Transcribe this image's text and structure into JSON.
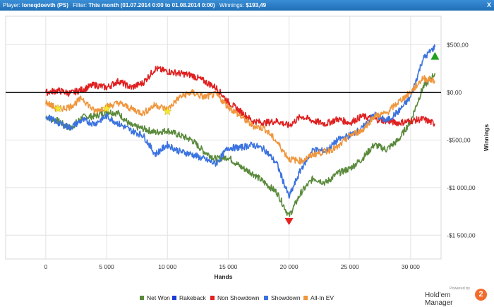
{
  "header": {
    "player_label": "Player:",
    "player_value": "Ioneqdoevth (PS)",
    "filter_label": "Filter:",
    "filter_value": "This month (01.07.2014 0:00 to 01.08.2014 0:00)",
    "winnings_label": "Winnings:",
    "winnings_value": "$193,49",
    "close": "X"
  },
  "chart_data": {
    "type": "line",
    "xlabel": "Hands",
    "ylabel": "Winnings",
    "xlim": [
      -3300,
      32500
    ],
    "ylim": [
      -1750,
      800
    ],
    "x_ticks": [
      0,
      5000,
      10000,
      15000,
      20000,
      25000,
      30000
    ],
    "x_tick_labels": [
      "0",
      "5 000",
      "10 000",
      "15 000",
      "20 000",
      "25 000",
      "30 000"
    ],
    "y_ticks": [
      -1500,
      -1000,
      -500,
      0,
      500
    ],
    "y_tick_labels": [
      "-$1 500,00",
      "-$1 000,00",
      "-$500,00",
      "$0,00",
      "$500,00"
    ],
    "grid": true,
    "legend_position": "bottom",
    "colors": {
      "net_won": "#5a8a3c",
      "rakeback": "#1a3ad8",
      "non_showdown": "#e02020",
      "showdown": "#3a72e0",
      "all_in_ev": "#f0963c",
      "zero_line": "#000000"
    },
    "series": [
      {
        "name": "Net Won",
        "color": "#5a8a3c",
        "x": [
          0,
          1000,
          2000,
          3000,
          4000,
          5000,
          6000,
          7000,
          8000,
          9000,
          10000,
          11000,
          12000,
          13000,
          14000,
          15000,
          16000,
          17000,
          18000,
          19000,
          20000,
          21000,
          22000,
          23000,
          24000,
          25000,
          26000,
          27000,
          28000,
          29000,
          30000,
          31000,
          32000
        ],
        "y": [
          -250,
          -300,
          -380,
          -260,
          -250,
          -200,
          -220,
          -350,
          -380,
          -420,
          -400,
          -450,
          -500,
          -620,
          -700,
          -680,
          -780,
          -850,
          -950,
          -1050,
          -1300,
          -1050,
          -900,
          -950,
          -850,
          -800,
          -700,
          -550,
          -600,
          -500,
          -300,
          50,
          200
        ]
      },
      {
        "name": "Rakeback",
        "color": "#1a3ad8",
        "x": [
          0,
          32000
        ],
        "y": [
          0,
          0
        ]
      },
      {
        "name": "Non Showdown",
        "color": "#e02020",
        "x": [
          0,
          1000,
          2000,
          3000,
          4000,
          5000,
          6000,
          7000,
          8000,
          9000,
          10000,
          11000,
          12000,
          13000,
          14000,
          15000,
          16000,
          17000,
          18000,
          19000,
          20000,
          21000,
          22000,
          23000,
          24000,
          25000,
          26000,
          27000,
          28000,
          29000,
          30000,
          31000,
          32000
        ],
        "y": [
          0,
          20,
          -10,
          30,
          80,
          50,
          120,
          50,
          100,
          250,
          220,
          200,
          180,
          120,
          50,
          -100,
          -200,
          -300,
          -320,
          -300,
          -350,
          -250,
          -300,
          -330,
          -280,
          -320,
          -250,
          -280,
          -300,
          -320,
          -300,
          -280,
          -330
        ]
      },
      {
        "name": "Showdown",
        "color": "#3a72e0",
        "x": [
          0,
          1000,
          2000,
          3000,
          4000,
          5000,
          6000,
          7000,
          8000,
          9000,
          10000,
          11000,
          12000,
          13000,
          14000,
          15000,
          16000,
          17000,
          18000,
          19000,
          20000,
          21000,
          22000,
          23000,
          24000,
          25000,
          26000,
          27000,
          28000,
          29000,
          30000,
          31000,
          32000
        ],
        "y": [
          -250,
          -320,
          -370,
          -290,
          -330,
          -250,
          -330,
          -400,
          -450,
          -650,
          -550,
          -620,
          -650,
          -700,
          -750,
          -580,
          -580,
          -550,
          -600,
          -750,
          -1100,
          -800,
          -600,
          -620,
          -500,
          -450,
          -380,
          -230,
          -300,
          -200,
          -50,
          350,
          480
        ]
      },
      {
        "name": "All-In EV",
        "color": "#f0963c",
        "x": [
          0,
          1000,
          2000,
          3000,
          4000,
          5000,
          6000,
          7000,
          8000,
          9000,
          10000,
          11000,
          12000,
          13000,
          14000,
          15000,
          16000,
          17000,
          18000,
          19000,
          20000,
          21000,
          22000,
          23000,
          24000,
          25000,
          26000,
          27000,
          28000,
          29000,
          30000,
          31000,
          32000
        ],
        "y": [
          -100,
          -180,
          -150,
          -60,
          -200,
          -150,
          -110,
          -170,
          -220,
          -130,
          -180,
          -50,
          0,
          -50,
          -20,
          -150,
          -250,
          -350,
          -380,
          -520,
          -700,
          -720,
          -650,
          -620,
          -580,
          -450,
          -400,
          -250,
          -220,
          -100,
          0,
          150,
          120
        ]
      }
    ],
    "markers": [
      {
        "type": "star",
        "color": "#f5e634",
        "x": 1000,
        "y": -170
      },
      {
        "type": "star",
        "color": "#f5e634",
        "x": 5000,
        "y": -170
      },
      {
        "type": "star",
        "color": "#f5e634",
        "x": 10000,
        "y": -200
      },
      {
        "type": "triangle-down",
        "color": "#e82020",
        "x": 20000,
        "y": -1350
      },
      {
        "type": "triangle-up",
        "color": "#20a020",
        "x": 32000,
        "y": 380
      }
    ]
  },
  "legend": [
    {
      "label": "Net Won",
      "color": "#5a8a3c"
    },
    {
      "label": "Rakeback",
      "color": "#1a3ad8"
    },
    {
      "label": "Non Showdown",
      "color": "#e02020"
    },
    {
      "label": "Showdown",
      "color": "#3a72e0"
    },
    {
      "label": "All-In EV",
      "color": "#f0963c"
    }
  ],
  "brand": {
    "powered": "Powered by",
    "name": "Hold'em Manager",
    "logo": "2"
  }
}
